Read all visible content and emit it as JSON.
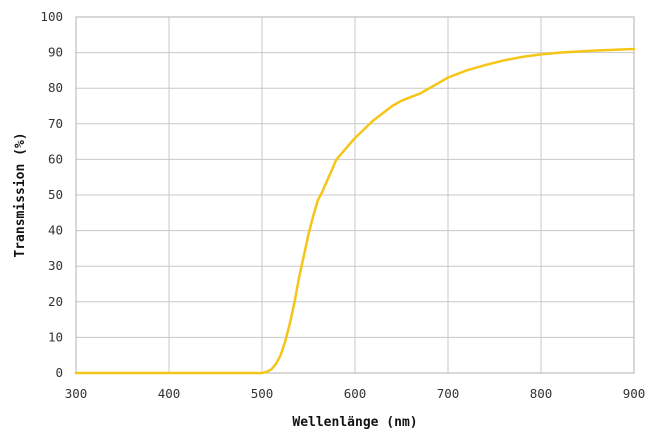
{
  "chart_data": {
    "type": "line",
    "xlabel": "Wellenlänge (nm)",
    "ylabel": "Transmission (%)",
    "xlim": [
      300,
      900
    ],
    "ylim": [
      0,
      100
    ],
    "x_ticks": [
      "300",
      "400",
      "500",
      "600",
      "700",
      "800",
      "900"
    ],
    "y_ticks": [
      "0",
      "10",
      "20",
      "30",
      "40",
      "50",
      "60",
      "70",
      "80",
      "90",
      "100"
    ],
    "grid": true,
    "legend": "none",
    "series": [
      {
        "color": "#f5c518",
        "x": [
          300,
          400,
          500,
          505,
          510,
          515,
          520,
          525,
          530,
          535,
          540,
          545,
          550,
          555,
          560,
          565,
          570,
          575,
          580,
          585,
          590,
          595,
          600,
          610,
          620,
          630,
          640,
          650,
          660,
          670,
          680,
          690,
          700,
          720,
          740,
          760,
          780,
          800,
          820,
          840,
          860,
          880,
          900
        ],
        "y": [
          0,
          0,
          0,
          0.3,
          1,
          2.5,
          5,
          9,
          14,
          20,
          27,
          33,
          39,
          44,
          48.5,
          51,
          54,
          57,
          60,
          61.5,
          63,
          64.5,
          66,
          68.5,
          71,
          73,
          75,
          76.5,
          77.5,
          78.5,
          80,
          81.5,
          83,
          85,
          86.5,
          87.8,
          88.8,
          89.5,
          90,
          90.3,
          90.6,
          90.8,
          91
        ]
      }
    ]
  }
}
